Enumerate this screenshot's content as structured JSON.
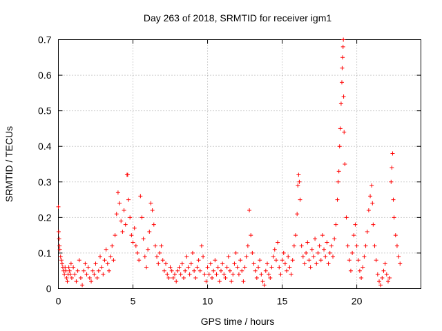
{
  "chart_data": {
    "type": "scatter",
    "title": "Day 263 of 2018, SRMTID for receiver igm1",
    "xlabel": "GPS time / hours",
    "ylabel": "SRMTID / TECUs",
    "xlim": [
      0,
      24.3
    ],
    "ylim": [
      0,
      0.7
    ],
    "x_ticks": [
      0,
      5,
      10,
      15,
      20
    ],
    "x_tick_labels": [
      "0",
      "5",
      "10",
      "15",
      "20"
    ],
    "y_ticks": [
      0,
      0.1,
      0.2,
      0.3,
      0.4,
      0.5,
      0.6,
      0.7
    ],
    "y_tick_labels": [
      "0",
      "0.1",
      "0.2",
      "0.3",
      "0.4",
      "0.5",
      "0.6",
      "0.7"
    ],
    "grid": true,
    "marker": "+",
    "color": "#ff0000",
    "series": [
      {
        "name": "igm1",
        "points": [
          [
            0.0,
            0.23
          ],
          [
            0.02,
            0.16
          ],
          [
            0.05,
            0.14
          ],
          [
            0.08,
            0.12
          ],
          [
            0.1,
            0.11
          ],
          [
            0.15,
            0.09
          ],
          [
            0.2,
            0.08
          ],
          [
            0.25,
            0.07
          ],
          [
            0.3,
            0.06
          ],
          [
            0.35,
            0.05
          ],
          [
            0.4,
            0.04
          ],
          [
            0.45,
            0.06
          ],
          [
            0.5,
            0.05
          ],
          [
            0.55,
            0.03
          ],
          [
            0.6,
            0.02
          ],
          [
            0.65,
            0.04
          ],
          [
            0.7,
            0.06
          ],
          [
            0.75,
            0.05
          ],
          [
            0.8,
            0.04
          ],
          [
            0.85,
            0.07
          ],
          [
            0.9,
            0.03
          ],
          [
            1.0,
            0.06
          ],
          [
            1.1,
            0.04
          ],
          [
            1.2,
            0.02
          ],
          [
            1.3,
            0.05
          ],
          [
            1.4,
            0.08
          ],
          [
            1.5,
            0.03
          ],
          [
            1.6,
            0.01
          ],
          [
            1.7,
            0.05
          ],
          [
            1.8,
            0.07
          ],
          [
            1.9,
            0.04
          ],
          [
            2.0,
            0.06
          ],
          [
            2.1,
            0.03
          ],
          [
            2.2,
            0.02
          ],
          [
            2.3,
            0.05
          ],
          [
            2.4,
            0.04
          ],
          [
            2.5,
            0.07
          ],
          [
            2.6,
            0.03
          ],
          [
            2.7,
            0.05
          ],
          [
            2.8,
            0.09
          ],
          [
            2.9,
            0.06
          ],
          [
            3.0,
            0.04
          ],
          [
            3.1,
            0.08
          ],
          [
            3.2,
            0.11
          ],
          [
            3.3,
            0.07
          ],
          [
            3.4,
            0.05
          ],
          [
            3.5,
            0.09
          ],
          [
            3.6,
            0.12
          ],
          [
            3.7,
            0.08
          ],
          [
            3.8,
            0.15
          ],
          [
            3.9,
            0.21
          ],
          [
            4.0,
            0.27
          ],
          [
            4.1,
            0.24
          ],
          [
            4.2,
            0.19
          ],
          [
            4.3,
            0.16
          ],
          [
            4.4,
            0.22
          ],
          [
            4.5,
            0.18
          ],
          [
            4.6,
            0.32
          ],
          [
            4.65,
            0.32
          ],
          [
            4.7,
            0.25
          ],
          [
            4.8,
            0.2
          ],
          [
            4.9,
            0.15
          ],
          [
            5.0,
            0.13
          ],
          [
            5.1,
            0.17
          ],
          [
            5.2,
            0.12
          ],
          [
            5.3,
            0.1
          ],
          [
            5.4,
            0.08
          ],
          [
            5.5,
            0.26
          ],
          [
            5.6,
            0.2
          ],
          [
            5.7,
            0.14
          ],
          [
            5.8,
            0.09
          ],
          [
            5.9,
            0.06
          ],
          [
            6.0,
            0.11
          ],
          [
            6.1,
            0.16
          ],
          [
            6.2,
            0.24
          ],
          [
            6.3,
            0.22
          ],
          [
            6.4,
            0.18
          ],
          [
            6.5,
            0.12
          ],
          [
            6.6,
            0.09
          ],
          [
            6.7,
            0.07
          ],
          [
            6.8,
            0.1
          ],
          [
            6.9,
            0.12
          ],
          [
            7.0,
            0.08
          ],
          [
            7.1,
            0.05
          ],
          [
            7.2,
            0.07
          ],
          [
            7.3,
            0.04
          ],
          [
            7.4,
            0.03
          ],
          [
            7.5,
            0.06
          ],
          [
            7.6,
            0.05
          ],
          [
            7.7,
            0.03
          ],
          [
            7.8,
            0.04
          ],
          [
            7.9,
            0.02
          ],
          [
            8.0,
            0.05
          ],
          [
            8.1,
            0.06
          ],
          [
            8.2,
            0.04
          ],
          [
            8.3,
            0.07
          ],
          [
            8.4,
            0.03
          ],
          [
            8.5,
            0.05
          ],
          [
            8.6,
            0.09
          ],
          [
            8.7,
            0.06
          ],
          [
            8.8,
            0.04
          ],
          [
            8.9,
            0.07
          ],
          [
            9.0,
            0.1
          ],
          [
            9.1,
            0.05
          ],
          [
            9.2,
            0.03
          ],
          [
            9.3,
            0.06
          ],
          [
            9.4,
            0.08
          ],
          [
            9.5,
            0.05
          ],
          [
            9.6,
            0.12
          ],
          [
            9.7,
            0.09
          ],
          [
            9.8,
            0.04
          ],
          [
            9.9,
            0.02
          ],
          [
            10.0,
            0.06
          ],
          [
            10.1,
            0.04
          ],
          [
            10.2,
            0.07
          ],
          [
            10.3,
            0.03
          ],
          [
            10.4,
            0.05
          ],
          [
            10.5,
            0.08
          ],
          [
            10.6,
            0.04
          ],
          [
            10.7,
            0.06
          ],
          [
            10.8,
            0.02
          ],
          [
            10.9,
            0.05
          ],
          [
            11.0,
            0.07
          ],
          [
            11.1,
            0.04
          ],
          [
            11.2,
            0.03
          ],
          [
            11.3,
            0.06
          ],
          [
            11.4,
            0.09
          ],
          [
            11.5,
            0.05
          ],
          [
            11.6,
            0.02
          ],
          [
            11.7,
            0.04
          ],
          [
            11.8,
            0.07
          ],
          [
            11.9,
            0.1
          ],
          [
            12.0,
            0.06
          ],
          [
            12.1,
            0.04
          ],
          [
            12.2,
            0.08
          ],
          [
            12.3,
            0.05
          ],
          [
            12.4,
            0.02
          ],
          [
            12.5,
            0.06
          ],
          [
            12.6,
            0.09
          ],
          [
            12.7,
            0.12
          ],
          [
            12.8,
            0.22
          ],
          [
            12.9,
            0.15
          ],
          [
            13.0,
            0.1
          ],
          [
            13.1,
            0.07
          ],
          [
            13.2,
            0.05
          ],
          [
            13.3,
            0.03
          ],
          [
            13.4,
            0.06
          ],
          [
            13.5,
            0.08
          ],
          [
            13.6,
            0.04
          ],
          [
            13.7,
            0.02
          ],
          [
            13.8,
            0.01
          ],
          [
            13.9,
            0.05
          ],
          [
            14.0,
            0.07
          ],
          [
            14.1,
            0.04
          ],
          [
            14.2,
            0.03
          ],
          [
            14.3,
            0.06
          ],
          [
            14.4,
            0.09
          ],
          [
            14.5,
            0.11
          ],
          [
            14.6,
            0.08
          ],
          [
            14.7,
            0.13
          ],
          [
            14.8,
            0.06
          ],
          [
            14.9,
            0.04
          ],
          [
            15.0,
            0.08
          ],
          [
            15.1,
            0.1
          ],
          [
            15.2,
            0.07
          ],
          [
            15.3,
            0.05
          ],
          [
            15.4,
            0.09
          ],
          [
            15.5,
            0.06
          ],
          [
            15.6,
            0.04
          ],
          [
            15.7,
            0.08
          ],
          [
            15.8,
            0.12
          ],
          [
            15.9,
            0.15
          ],
          [
            16.0,
            0.21
          ],
          [
            16.05,
            0.29
          ],
          [
            16.1,
            0.32
          ],
          [
            16.15,
            0.3
          ],
          [
            16.2,
            0.25
          ],
          [
            16.3,
            0.12
          ],
          [
            16.4,
            0.09
          ],
          [
            16.5,
            0.07
          ],
          [
            16.6,
            0.1
          ],
          [
            16.7,
            0.13
          ],
          [
            16.8,
            0.08
          ],
          [
            16.9,
            0.06
          ],
          [
            17.0,
            0.11
          ],
          [
            17.1,
            0.09
          ],
          [
            17.2,
            0.14
          ],
          [
            17.3,
            0.07
          ],
          [
            17.4,
            0.1
          ],
          [
            17.5,
            0.12
          ],
          [
            17.6,
            0.08
          ],
          [
            17.7,
            0.15
          ],
          [
            17.8,
            0.11
          ],
          [
            17.9,
            0.09
          ],
          [
            18.0,
            0.13
          ],
          [
            18.1,
            0.07
          ],
          [
            18.2,
            0.1
          ],
          [
            18.3,
            0.12
          ],
          [
            18.4,
            0.09
          ],
          [
            18.5,
            0.14
          ],
          [
            18.6,
            0.18
          ],
          [
            18.7,
            0.25
          ],
          [
            18.75,
            0.3
          ],
          [
            18.8,
            0.33
          ],
          [
            18.85,
            0.4
          ],
          [
            18.9,
            0.45
          ],
          [
            18.95,
            0.52
          ],
          [
            19.0,
            0.58
          ],
          [
            19.02,
            0.62
          ],
          [
            19.05,
            0.65
          ],
          [
            19.08,
            0.68
          ],
          [
            19.1,
            0.7
          ],
          [
            19.12,
            0.54
          ],
          [
            19.15,
            0.44
          ],
          [
            19.2,
            0.35
          ],
          [
            19.3,
            0.2
          ],
          [
            19.4,
            0.12
          ],
          [
            19.5,
            0.08
          ],
          [
            19.6,
            0.05
          ],
          [
            19.7,
            0.1
          ],
          [
            19.8,
            0.15
          ],
          [
            19.9,
            0.18
          ],
          [
            20.0,
            0.12
          ],
          [
            20.1,
            0.08
          ],
          [
            20.2,
            0.05
          ],
          [
            20.3,
            0.03
          ],
          [
            20.4,
            0.06
          ],
          [
            20.5,
            0.09
          ],
          [
            20.6,
            0.12
          ],
          [
            20.7,
            0.16
          ],
          [
            20.8,
            0.22
          ],
          [
            20.9,
            0.26
          ],
          [
            21.0,
            0.29
          ],
          [
            21.05,
            0.24
          ],
          [
            21.1,
            0.18
          ],
          [
            21.2,
            0.12
          ],
          [
            21.3,
            0.08
          ],
          [
            21.4,
            0.04
          ],
          [
            21.5,
            0.02
          ],
          [
            21.6,
            0.01
          ],
          [
            21.7,
            0.03
          ],
          [
            21.8,
            0.05
          ],
          [
            21.9,
            0.07
          ],
          [
            22.0,
            0.04
          ],
          [
            22.1,
            0.02
          ],
          [
            22.2,
            0.03
          ],
          [
            22.3,
            0.3
          ],
          [
            22.35,
            0.34
          ],
          [
            22.4,
            0.38
          ],
          [
            22.45,
            0.25
          ],
          [
            22.5,
            0.2
          ],
          [
            22.6,
            0.15
          ],
          [
            22.7,
            0.12
          ],
          [
            22.8,
            0.09
          ],
          [
            22.9,
            0.07
          ]
        ]
      }
    ]
  }
}
